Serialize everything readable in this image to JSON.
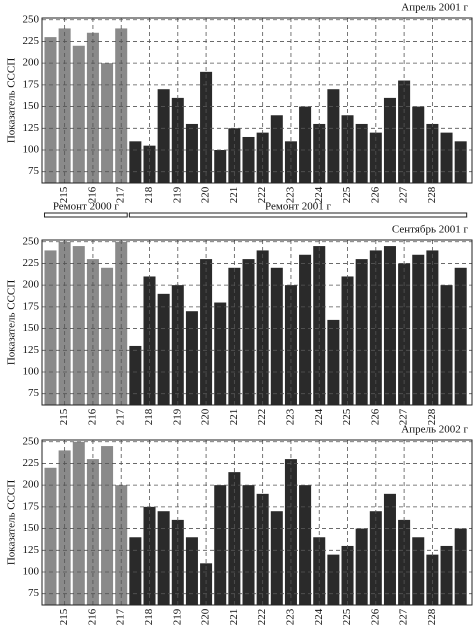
{
  "chart_data": [
    {
      "type": "bar",
      "title": "Апрель 2001 г",
      "ylabel": "Показатель СССП",
      "annotations": [
        "Ремонт 2000 г",
        "Ремонт 2001 г"
      ],
      "xlim": [
        214.2,
        229.4
      ],
      "xticks": [
        215,
        216,
        217,
        218,
        219,
        220,
        221,
        222,
        223,
        224,
        225,
        226,
        227,
        228
      ],
      "ylim": [
        62,
        252
      ],
      "yticks": [
        75,
        100,
        125,
        150,
        175,
        200,
        225,
        250
      ],
      "grid": true,
      "series": [
        {
          "color": "#8a8a8a",
          "x": [
            214.5,
            215,
            215.5,
            216,
            216.5,
            217
          ],
          "values": [
            230,
            240,
            220,
            235,
            200,
            240
          ]
        },
        {
          "color": "#2a2a2a",
          "x": [
            217.5,
            218,
            218.5,
            219,
            219.5,
            220,
            220.5,
            221,
            221.5,
            222,
            222.5,
            223,
            223.5,
            224,
            224.5,
            225,
            225.5,
            226,
            226.5,
            227,
            227.5,
            228,
            228.5,
            229
          ],
          "values": [
            110,
            105,
            170,
            160,
            130,
            190,
            100,
            125,
            115,
            120,
            140,
            110,
            150,
            130,
            170,
            140,
            130,
            120,
            160,
            180,
            150,
            130,
            120,
            110
          ]
        }
      ]
    },
    {
      "type": "bar",
      "title": "Сентябрь 2001 г",
      "ylabel": "Показатель СССП",
      "xlim": [
        214.2,
        229.4
      ],
      "xticks": [
        215,
        216,
        217,
        218,
        219,
        220,
        221,
        222,
        223,
        224,
        225,
        226,
        227,
        228
      ],
      "ylim": [
        62,
        252
      ],
      "yticks": [
        75,
        100,
        125,
        150,
        175,
        200,
        225,
        250
      ],
      "grid": true,
      "series": [
        {
          "color": "#8a8a8a",
          "x": [
            214.5,
            215,
            215.5,
            216,
            216.5,
            217
          ],
          "values": [
            240,
            250,
            245,
            230,
            220,
            250
          ]
        },
        {
          "color": "#2a2a2a",
          "x": [
            217.5,
            218,
            218.5,
            219,
            219.5,
            220,
            220.5,
            221,
            221.5,
            222,
            222.5,
            223,
            223.5,
            224,
            224.5,
            225,
            225.5,
            226,
            226.5,
            227,
            227.5,
            228,
            228.5,
            229
          ],
          "values": [
            130,
            210,
            190,
            200,
            170,
            230,
            180,
            220,
            230,
            240,
            220,
            200,
            235,
            245,
            160,
            210,
            230,
            240,
            245,
            225,
            235,
            240,
            200,
            220
          ]
        }
      ]
    },
    {
      "type": "bar",
      "title": "Апрель 2002 г",
      "ylabel": "Показатель СССП",
      "xlim": [
        214.2,
        229.4
      ],
      "xticks": [
        215,
        216,
        217,
        218,
        219,
        220,
        221,
        222,
        223,
        224,
        225,
        226,
        227,
        228
      ],
      "ylim": [
        62,
        252
      ],
      "yticks": [
        75,
        100,
        125,
        150,
        175,
        200,
        225,
        250
      ],
      "grid": true,
      "series": [
        {
          "color": "#8a8a8a",
          "x": [
            214.5,
            215,
            215.5,
            216,
            216.5,
            217
          ],
          "values": [
            220,
            240,
            250,
            230,
            245,
            200
          ]
        },
        {
          "color": "#2a2a2a",
          "x": [
            217.5,
            218,
            218.5,
            219,
            219.5,
            220,
            220.5,
            221,
            221.5,
            222,
            222.5,
            223,
            223.5,
            224,
            224.5,
            225,
            225.5,
            226,
            226.5,
            227,
            227.5,
            228,
            228.5,
            229
          ],
          "values": [
            140,
            175,
            170,
            160,
            140,
            110,
            200,
            215,
            200,
            190,
            170,
            230,
            200,
            140,
            120,
            130,
            150,
            170,
            190,
            160,
            140,
            120,
            130,
            150
          ]
        }
      ]
    }
  ]
}
